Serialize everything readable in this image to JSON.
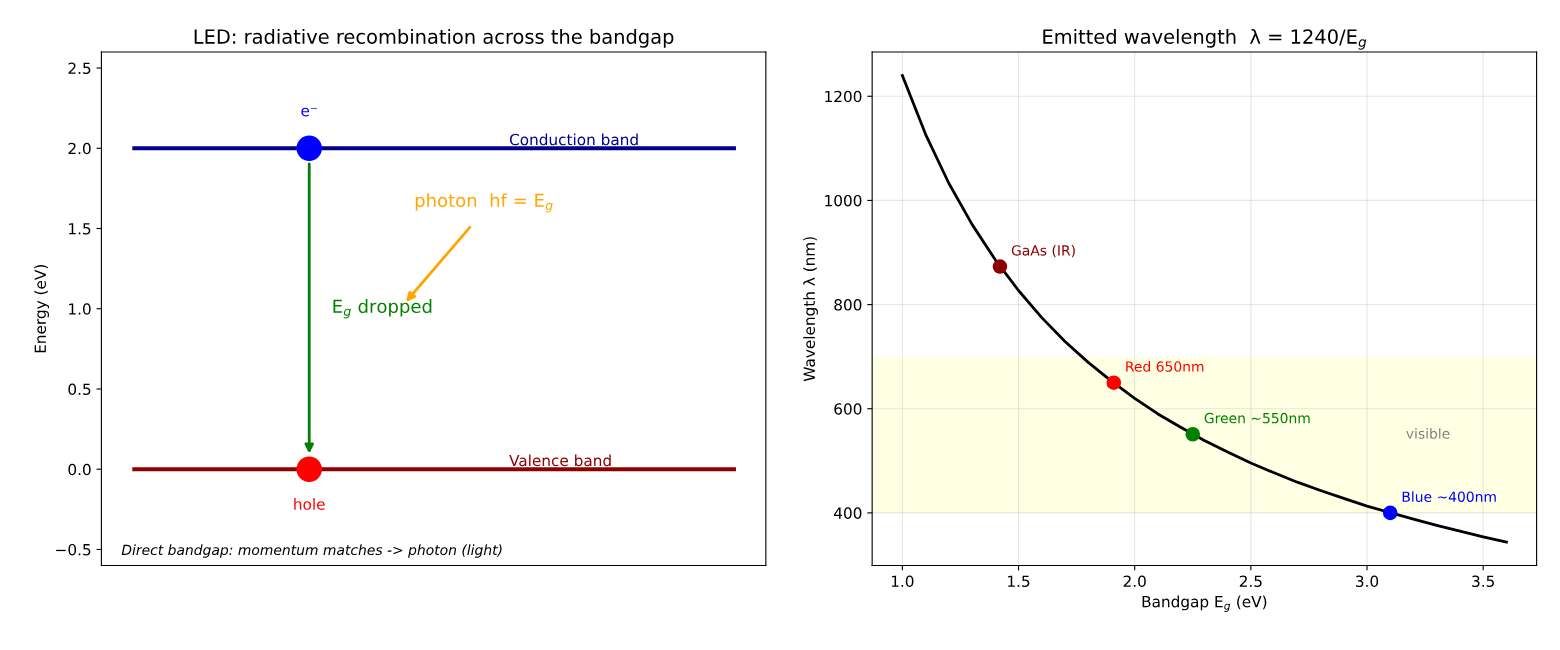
{
  "chart_data": [
    {
      "type": "line",
      "title": "LED: radiative recombination across the bandgap",
      "ylabel": "Energy (eV)",
      "categories": [
        null,
        null,
        null,
        null,
        null,
        null,
        null,
        null,
        null,
        null,
        null,
        null,
        null,
        null,
        null,
        null,
        null,
        null,
        null,
        null,
        null,
        null,
        null,
        null,
        null
      ],
      "ylim": [
        -0.6,
        2.6
      ],
      "yticks": [
        {
          "value": -0.5,
          "label": "−0.5"
        },
        {
          "value": 0,
          "label": "0.0"
        },
        {
          "value": 0.5,
          "label": "0.5"
        },
        {
          "value": 1,
          "label": "1.0"
        },
        {
          "value": 1.5,
          "label": "1.5"
        },
        {
          "value": 2,
          "label": "2.0"
        },
        {
          "value": 2.5,
          "label": "2.5"
        }
      ],
      "tick_labels": "y",
      "grid": false,
      "series": [
        {
          "name": "Conduction band",
          "color": "#00008b",
          "values": [
            2,
            2,
            2,
            2,
            2,
            2,
            2,
            2,
            2,
            2,
            2,
            2,
            2,
            2,
            2,
            2,
            2,
            2,
            2,
            2,
            2,
            2,
            2,
            2,
            2
          ]
        },
        {
          "name": "Valence band",
          "color": "#8b0000",
          "values": [
            0,
            0,
            0,
            0,
            0,
            0,
            0,
            0,
            0,
            0,
            0,
            0,
            0,
            0,
            0,
            0,
            0,
            0,
            0,
            0,
            0,
            0,
            0,
            0,
            0
          ]
        },
        {
          "type": "scatter",
          "name": "e⁻",
          "color": "#0000ff",
          "values": [
            null,
            null,
            null,
            null,
            null,
            null,
            null,
            2,
            null,
            null,
            null,
            null,
            null,
            null,
            null,
            null,
            null,
            null,
            null,
            null,
            null,
            null,
            null,
            null,
            null
          ]
        },
        {
          "type": "scatter",
          "name": "hole",
          "color": "#ff0000",
          "values": [
            null,
            null,
            null,
            null,
            null,
            null,
            null,
            0,
            null,
            null,
            null,
            null,
            null,
            null,
            null,
            null,
            null,
            null,
            null,
            null,
            null,
            null,
            null,
            null,
            null
          ]
        }
      ],
      "annotations": [
        "E$_{g}$ dropped",
        "photon  hf = E$_{g}$",
        "Direct bandgap: momentum matches -> photon (light)"
      ]
    },
    {
      "type": "line",
      "title": "Emitted wavelength  λ = 1240/E$_{g}$",
      "xlabel": "Bandgap E$_{g}$ (eV)",
      "ylabel": "Wavelength λ (nm)",
      "xlim": [
        0.87,
        3.73
      ],
      "xticks": [
        {
          "value": 1,
          "label": "1.0"
        },
        {
          "value": 1.5,
          "label": "1.5"
        },
        {
          "value": 2,
          "label": "2.0"
        },
        {
          "value": 2.5,
          "label": "2.5"
        },
        {
          "value": 3,
          "label": "3.0"
        },
        {
          "value": 3.5,
          "label": "3.5"
        }
      ],
      "ylim": [
        299,
        1285
      ],
      "yticks": [
        400,
        600,
        800,
        1000,
        1200
      ],
      "grid": true,
      "bands": [
        {
          "axis": "y",
          "from": 400,
          "to": 700,
          "label": "visible",
          "color": "#ffffe0"
        }
      ],
      "series": [
        {
          "color": "#000000",
          "x": [
            1.0,
            1.1,
            1.2,
            1.3,
            1.4,
            1.5,
            1.6,
            1.7,
            1.8,
            1.9,
            2.0,
            2.1,
            2.2,
            2.3,
            2.4,
            2.5,
            2.6,
            2.7,
            2.8,
            2.9,
            3.0,
            3.2,
            3.3,
            3.4,
            3.5,
            3.6
          ],
          "values": [
            1240,
            1127,
            1033,
            954,
            886,
            827,
            775,
            729,
            689,
            653,
            620,
            590,
            564,
            539,
            517,
            496,
            477,
            459,
            443,
            428,
            413,
            388,
            376,
            365,
            354,
            344
          ]
        },
        {
          "type": "scatter",
          "name": "GaAs (IR)",
          "color": "#8b0000",
          "x": [
            1.42
          ],
          "values": [
            873
          ]
        },
        {
          "type": "scatter",
          "name": "Red 650nm",
          "color": "#ff0000",
          "x": [
            1.91
          ],
          "values": [
            650
          ]
        },
        {
          "type": "scatter",
          "name": "Green ~550nm",
          "color": "#008000",
          "x": [
            2.25
          ],
          "values": [
            551
          ]
        },
        {
          "type": "scatter",
          "name": "Blue ~400nm",
          "color": "#0000ff",
          "x": [
            3.1
          ],
          "values": [
            400
          ]
        }
      ]
    }
  ]
}
